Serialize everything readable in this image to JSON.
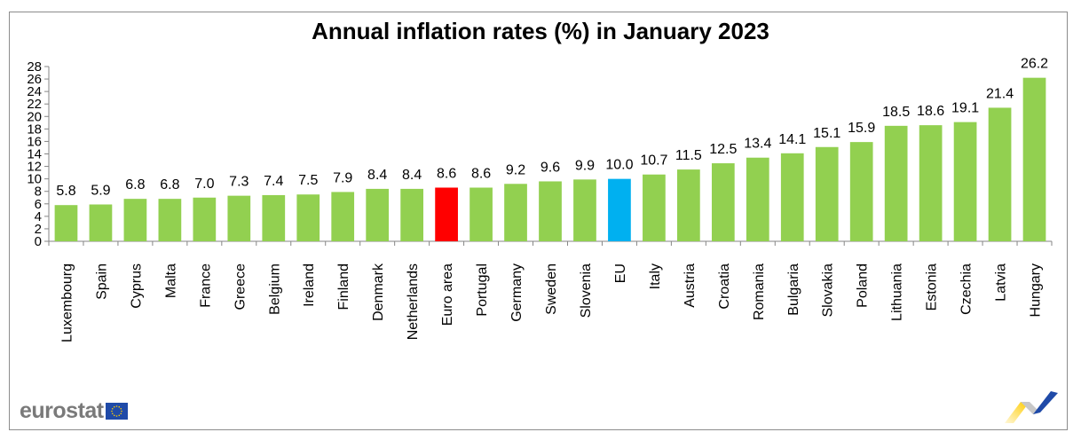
{
  "chart_data": {
    "type": "bar",
    "title": "Annual inflation rates (%) in January 2023",
    "xlabel": "",
    "ylabel": "",
    "ylim": [
      0,
      28
    ],
    "yticks": [
      0,
      2,
      4,
      6,
      8,
      10,
      12,
      14,
      16,
      18,
      20,
      22,
      24,
      26,
      28
    ],
    "grid": false,
    "legend": "none",
    "categories": [
      "Luxembourg",
      "Spain",
      "Cyprus",
      "Malta",
      "France",
      "Greece",
      "Belgium",
      "Ireland",
      "Finland",
      "Denmark",
      "Netherlands",
      "Euro area",
      "Portugal",
      "Germany",
      "Sweden",
      "Slovenia",
      "EU",
      "Italy",
      "Austria",
      "Croatia",
      "Romania",
      "Bulgaria",
      "Slovakia",
      "Poland",
      "Lithuania",
      "Estonia",
      "Czechia",
      "Latvia",
      "Hungary"
    ],
    "values": [
      5.8,
      5.9,
      6.8,
      6.8,
      7.0,
      7.3,
      7.4,
      7.5,
      7.9,
      8.4,
      8.4,
      8.6,
      8.6,
      9.2,
      9.6,
      9.9,
      10.0,
      10.7,
      11.5,
      12.5,
      13.4,
      14.1,
      15.1,
      15.9,
      18.5,
      18.6,
      19.1,
      21.4,
      26.2
    ],
    "data_labels": [
      "5.8",
      "5.9",
      "6.8",
      "6.8",
      "7.0",
      "7.3",
      "7.4",
      "7.5",
      "7.9",
      "8.4",
      "8.4",
      "8.6",
      "8.6",
      "9.2",
      "9.6",
      "9.9",
      "10.0",
      "10.7",
      "11.5",
      "12.5",
      "13.4",
      "14.1",
      "15.1",
      "15.9",
      "18.5",
      "18.6",
      "19.1",
      "21.4",
      "26.2"
    ],
    "colors": {
      "default": "#92d050",
      "Euro area": "#ff0000",
      "EU": "#00b0f0"
    }
  },
  "branding": {
    "logo_text": "eurostat",
    "flag_color": "#1f4aa8",
    "ribbon_colors": [
      "#ffcc00",
      "#c0c0c0",
      "#1f4aa8"
    ]
  }
}
